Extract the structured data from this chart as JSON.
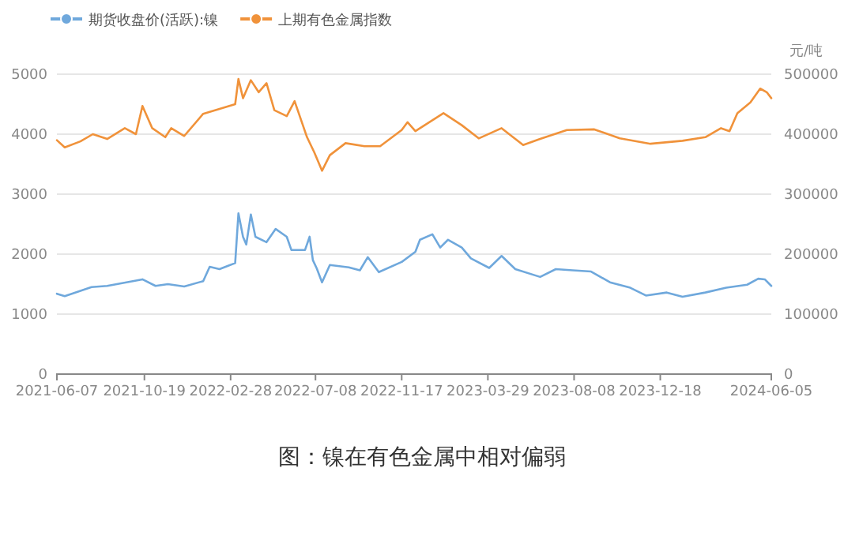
{
  "chart_data": {
    "type": "line",
    "title": "图：镍在有色金属中相对偏弱",
    "y2label": "元/吨",
    "legend": "top",
    "grid": "y",
    "xlim": [
      "2021-06-07",
      "2024-06-05"
    ],
    "xticks": [
      "2021-06-07",
      "2021-10-19",
      "2022-02-28",
      "2022-07-08",
      "2022-11-17",
      "2023-03-29",
      "2023-08-08",
      "2023-12-18",
      "2024-06-05"
    ],
    "ylim": [
      0,
      5000
    ],
    "yticks": [
      0,
      1000,
      2000,
      3000,
      4000,
      5000
    ],
    "y2lim": [
      0,
      500000
    ],
    "y2ticks": [
      0,
      100000,
      200000,
      300000,
      400000,
      500000
    ],
    "series": [
      {
        "name": "期货收盘价(活跃):镍",
        "color": "#6fa8dc",
        "axis": "y2",
        "x": [
          "2021-06-07",
          "2021-06-19",
          "2021-07-30",
          "2021-08-23",
          "2021-10-16",
          "2021-11-05",
          "2021-11-24",
          "2021-12-19",
          "2022-01-17",
          "2022-01-27",
          "2022-02-11",
          "2022-02-25",
          "2022-03-07",
          "2022-03-12",
          "2022-03-19",
          "2022-03-24",
          "2022-03-31",
          "2022-04-07",
          "2022-04-24",
          "2022-05-08",
          "2022-05-25",
          "2022-06-01",
          "2022-06-22",
          "2022-06-29",
          "2022-07-04",
          "2022-07-10",
          "2022-07-18",
          "2022-07-30",
          "2022-08-28",
          "2022-09-14",
          "2022-09-26",
          "2022-10-13",
          "2022-11-17",
          "2022-12-08",
          "2022-12-15",
          "2023-01-03",
          "2023-01-15",
          "2023-01-27",
          "2023-02-17",
          "2023-03-03",
          "2023-03-31",
          "2023-04-19",
          "2023-05-10",
          "2023-06-17",
          "2023-07-11",
          "2023-08-06",
          "2023-09-03",
          "2023-10-02",
          "2023-11-02",
          "2023-11-26",
          "2023-12-28",
          "2024-01-21",
          "2024-02-25",
          "2024-03-28",
          "2024-04-29",
          "2024-05-16",
          "2024-05-26",
          "2024-06-05"
        ],
        "values": [
          134000,
          130000,
          145000,
          147000,
          158000,
          147000,
          150000,
          146000,
          155000,
          179000,
          175000,
          181000,
          185000,
          268000,
          229000,
          216000,
          266000,
          229000,
          220000,
          242000,
          229000,
          207000,
          207000,
          229000,
          190000,
          176000,
          153000,
          182000,
          178000,
          173000,
          195000,
          170000,
          187000,
          204000,
          224000,
          233000,
          211000,
          224000,
          211000,
          193000,
          177000,
          197000,
          175000,
          162000,
          175000,
          173000,
          171000,
          153000,
          144000,
          131000,
          136000,
          129000,
          136000,
          144000,
          149000,
          159000,
          158000,
          147000
        ]
      },
      {
        "name": "上期有色金属指数",
        "color": "#f0923a",
        "axis": "y",
        "x": [
          "2021-06-07",
          "2021-06-19",
          "2021-07-13",
          "2021-08-01",
          "2021-08-23",
          "2021-09-19",
          "2021-10-06",
          "2021-10-16",
          "2021-10-31",
          "2021-11-20",
          "2021-11-29",
          "2021-12-19",
          "2022-01-17",
          "2022-02-11",
          "2022-03-07",
          "2022-03-12",
          "2022-03-19",
          "2022-03-31",
          "2022-04-12",
          "2022-04-24",
          "2022-05-06",
          "2022-05-25",
          "2022-06-06",
          "2022-06-25",
          "2022-07-06",
          "2022-07-18",
          "2022-07-30",
          "2022-08-23",
          "2022-09-21",
          "2022-10-15",
          "2022-11-17",
          "2022-11-26",
          "2022-12-08",
          "2023-01-20",
          "2023-02-17",
          "2023-03-15",
          "2023-04-19",
          "2023-05-22",
          "2023-06-17",
          "2023-07-28",
          "2023-09-08",
          "2023-10-17",
          "2023-12-03",
          "2024-01-21",
          "2024-02-25",
          "2024-03-20",
          "2024-04-02",
          "2024-04-14",
          "2024-05-04",
          "2024-05-19",
          "2024-05-29",
          "2024-06-05"
        ],
        "values": [
          3900,
          3780,
          3880,
          4000,
          3920,
          4100,
          4000,
          4470,
          4100,
          3950,
          4100,
          3970,
          4340,
          4420,
          4500,
          4920,
          4600,
          4900,
          4700,
          4850,
          4400,
          4300,
          4550,
          3950,
          3700,
          3390,
          3650,
          3850,
          3800,
          3800,
          4070,
          4200,
          4050,
          4350,
          4150,
          3930,
          4100,
          3820,
          3920,
          4070,
          4080,
          3930,
          3840,
          3890,
          3950,
          4100,
          4050,
          4350,
          4530,
          4760,
          4700,
          4600
        ]
      }
    ]
  }
}
